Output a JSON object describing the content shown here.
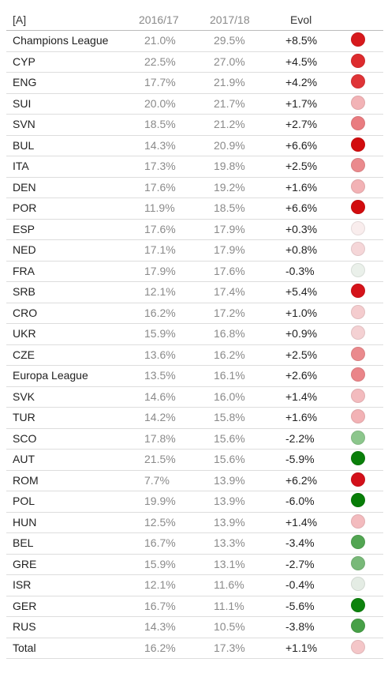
{
  "header": {
    "label": "[A]",
    "col1": "2016/17",
    "col2": "2017/18",
    "col3": "Evol"
  },
  "chart_data": {
    "type": "table",
    "columns": [
      "[A]",
      "2016/17",
      "2017/18",
      "Evol"
    ],
    "rows": [
      {
        "name": "Champions League",
        "v1": "21.0%",
        "v2": "29.5%",
        "evol": "+8.5%",
        "color": "#d7191c"
      },
      {
        "name": "CYP",
        "v1": "22.5%",
        "v2": "27.0%",
        "evol": "+4.5%",
        "color": "#dd2b2e"
      },
      {
        "name": "ENG",
        "v1": "17.7%",
        "v2": "21.9%",
        "evol": "+4.2%",
        "color": "#df3437"
      },
      {
        "name": "SUI",
        "v1": "20.0%",
        "v2": "21.7%",
        "evol": "+1.7%",
        "color": "#f2b3b6"
      },
      {
        "name": "SVN",
        "v1": "18.5%",
        "v2": "21.2%",
        "evol": "+2.7%",
        "color": "#e97c80"
      },
      {
        "name": "BUL",
        "v1": "14.3%",
        "v2": "20.9%",
        "evol": "+6.6%",
        "color": "#d20c0e"
      },
      {
        "name": "ITA",
        "v1": "17.3%",
        "v2": "19.8%",
        "evol": "+2.5%",
        "color": "#ea8a8d"
      },
      {
        "name": "DEN",
        "v1": "17.6%",
        "v2": "19.2%",
        "evol": "+1.6%",
        "color": "#f2b2b5"
      },
      {
        "name": "POR",
        "v1": "11.9%",
        "v2": "18.5%",
        "evol": "+6.6%",
        "color": "#d20c0e"
      },
      {
        "name": "ESP",
        "v1": "17.6%",
        "v2": "17.9%",
        "evol": "+0.3%",
        "color": "#f9eded"
      },
      {
        "name": "NED",
        "v1": "17.1%",
        "v2": "17.9%",
        "evol": "+0.8%",
        "color": "#f5d6d8"
      },
      {
        "name": "FRA",
        "v1": "17.9%",
        "v2": "17.6%",
        "evol": "-0.3%",
        "color": "#eaf0ea"
      },
      {
        "name": "SRB",
        "v1": "12.1%",
        "v2": "17.4%",
        "evol": "+5.4%",
        "color": "#d5131a"
      },
      {
        "name": "CRO",
        "v1": "16.2%",
        "v2": "17.2%",
        "evol": "+1.0%",
        "color": "#f4ccce"
      },
      {
        "name": "UKR",
        "v1": "15.9%",
        "v2": "16.8%",
        "evol": "+0.9%",
        "color": "#f4d1d3"
      },
      {
        "name": "CZE",
        "v1": "13.6%",
        "v2": "16.2%",
        "evol": "+2.5%",
        "color": "#ea8a8d"
      },
      {
        "name": "Europa League",
        "v1": "13.5%",
        "v2": "16.1%",
        "evol": "+2.6%",
        "color": "#ea8589"
      },
      {
        "name": "SVK",
        "v1": "14.6%",
        "v2": "16.0%",
        "evol": "+1.4%",
        "color": "#f3bbbe"
      },
      {
        "name": "TUR",
        "v1": "14.2%",
        "v2": "15.8%",
        "evol": "+1.6%",
        "color": "#f2b2b5"
      },
      {
        "name": "SCO",
        "v1": "17.8%",
        "v2": "15.6%",
        "evol": "-2.2%",
        "color": "#8cc68c"
      },
      {
        "name": "AUT",
        "v1": "21.5%",
        "v2": "15.6%",
        "evol": "-5.9%",
        "color": "#0a7f0a"
      },
      {
        "name": "ROM",
        "v1": "7.7%",
        "v2": "13.9%",
        "evol": "+6.2%",
        "color": "#d3101a"
      },
      {
        "name": "POL",
        "v1": "19.9%",
        "v2": "13.9%",
        "evol": "-6.0%",
        "color": "#077d07"
      },
      {
        "name": "HUN",
        "v1": "12.5%",
        "v2": "13.9%",
        "evol": "+1.4%",
        "color": "#f3bbbe"
      },
      {
        "name": "BEL",
        "v1": "16.7%",
        "v2": "13.3%",
        "evol": "-3.4%",
        "color": "#52a552"
      },
      {
        "name": "GRE",
        "v1": "15.9%",
        "v2": "13.1%",
        "evol": "-2.7%",
        "color": "#79b979"
      },
      {
        "name": "ISR",
        "v1": "12.1%",
        "v2": "11.6%",
        "evol": "-0.4%",
        "color": "#e4ece4"
      },
      {
        "name": "GER",
        "v1": "16.7%",
        "v2": "11.1%",
        "evol": "-5.6%",
        "color": "#0d820d"
      },
      {
        "name": "RUS",
        "v1": "14.3%",
        "v2": "10.5%",
        "evol": "-3.8%",
        "color": "#47a047"
      },
      {
        "name": "Total",
        "v1": "16.2%",
        "v2": "17.3%",
        "evol": "+1.1%",
        "color": "#f4c6c8"
      }
    ]
  }
}
